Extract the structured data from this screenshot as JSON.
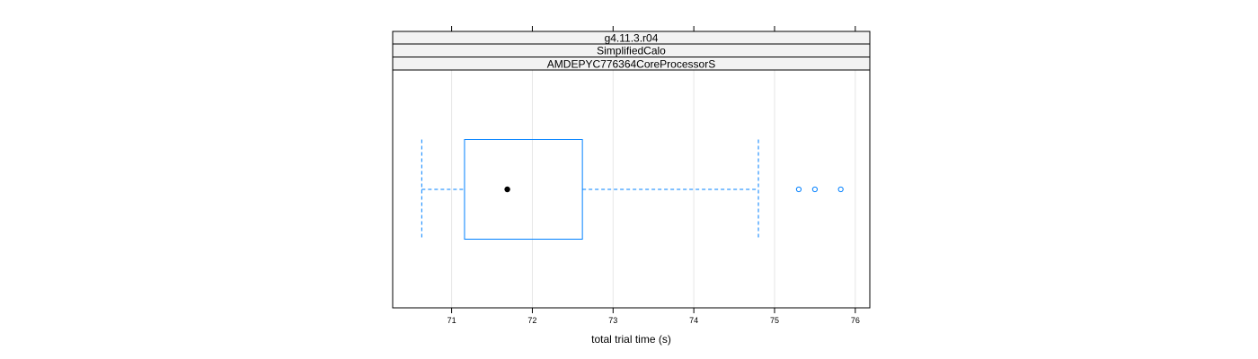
{
  "chart_data": {
    "type": "boxplot",
    "strips": [
      "g4.11.3.r04",
      "SimplifiedCalo",
      "AMDEPYC776364CoreProcessorS"
    ],
    "xlabel": "total trial time (s)",
    "xlim": [
      70.27,
      76.18
    ],
    "xticks": [
      71,
      72,
      73,
      74,
      75,
      76
    ],
    "grid": true,
    "box": {
      "whisker_low": 70.63,
      "q1": 71.16,
      "median": 71.69,
      "q3": 72.62,
      "whisker_high": 74.8
    },
    "outliers": [
      75.3,
      75.5,
      75.82
    ],
    "colors": {
      "box": "#0080ff",
      "median": "#000000",
      "strip_bg": "#f2f2f2",
      "grid": "#e6e6e6",
      "frame": "#000000"
    }
  }
}
